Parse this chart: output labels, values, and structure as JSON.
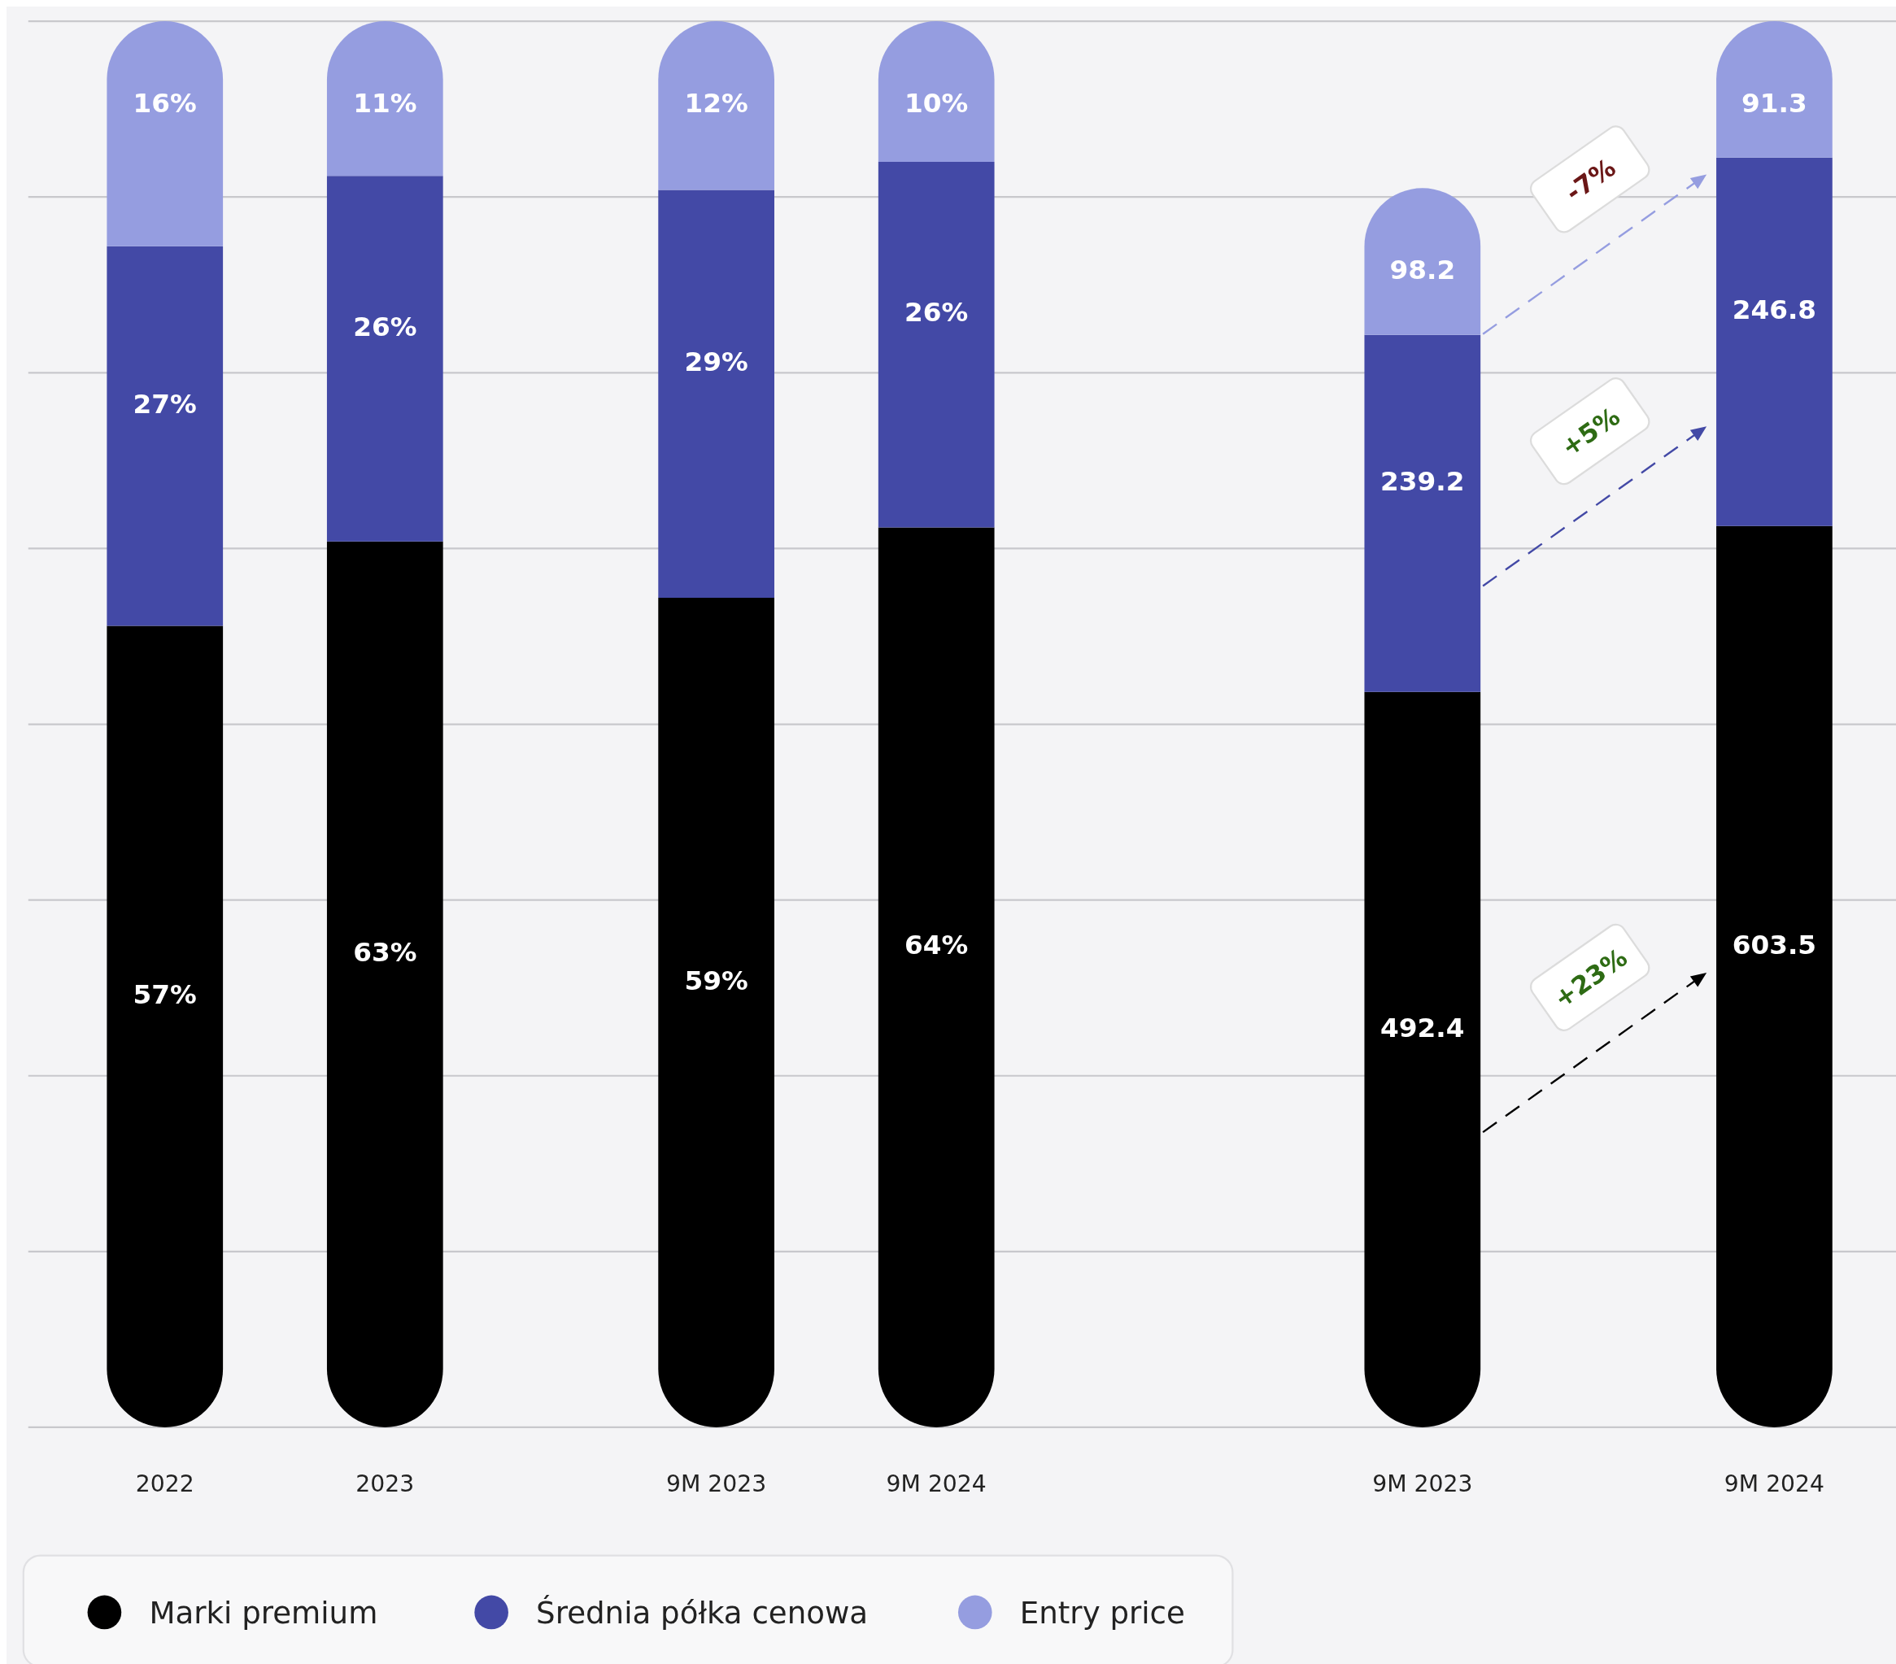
{
  "chart_data": [
    {
      "type": "bar",
      "stacked": true,
      "categories": [
        "2022",
        "2023",
        "9M 2023",
        "9M 2024"
      ],
      "series": [
        {
          "name": "Marki premium",
          "color": "#000000",
          "values": [
            57,
            63,
            59,
            64
          ],
          "value_labels": [
            "57%",
            "63%",
            "59%",
            "64%"
          ]
        },
        {
          "name": "Średnia półka cenowa",
          "color": "#4349a6",
          "values": [
            27,
            26,
            29,
            26
          ],
          "value_labels": [
            "27%",
            "26%",
            "29%",
            "26%"
          ]
        },
        {
          "name": "Entry price",
          "color": "#959de0",
          "values": [
            16,
            11,
            12,
            10
          ],
          "value_labels": [
            "16%",
            "11%",
            "12%",
            "10%"
          ]
        }
      ],
      "grid": true,
      "legend": "bottom"
    },
    {
      "type": "bar",
      "stacked": true,
      "categories": [
        "9M 2023",
        "9M 2024"
      ],
      "series": [
        {
          "color": "#000000",
          "values": [
            492.4,
            603.5
          ]
        },
        {
          "color": "#4349a6",
          "values": [
            239.2,
            246.8
          ]
        },
        {
          "color": "#959de0",
          "values": [
            98.2,
            91.3
          ]
        }
      ],
      "data_labels": true,
      "annotations": [
        "+23%",
        "+5%",
        "-7%"
      ]
    }
  ]
}
